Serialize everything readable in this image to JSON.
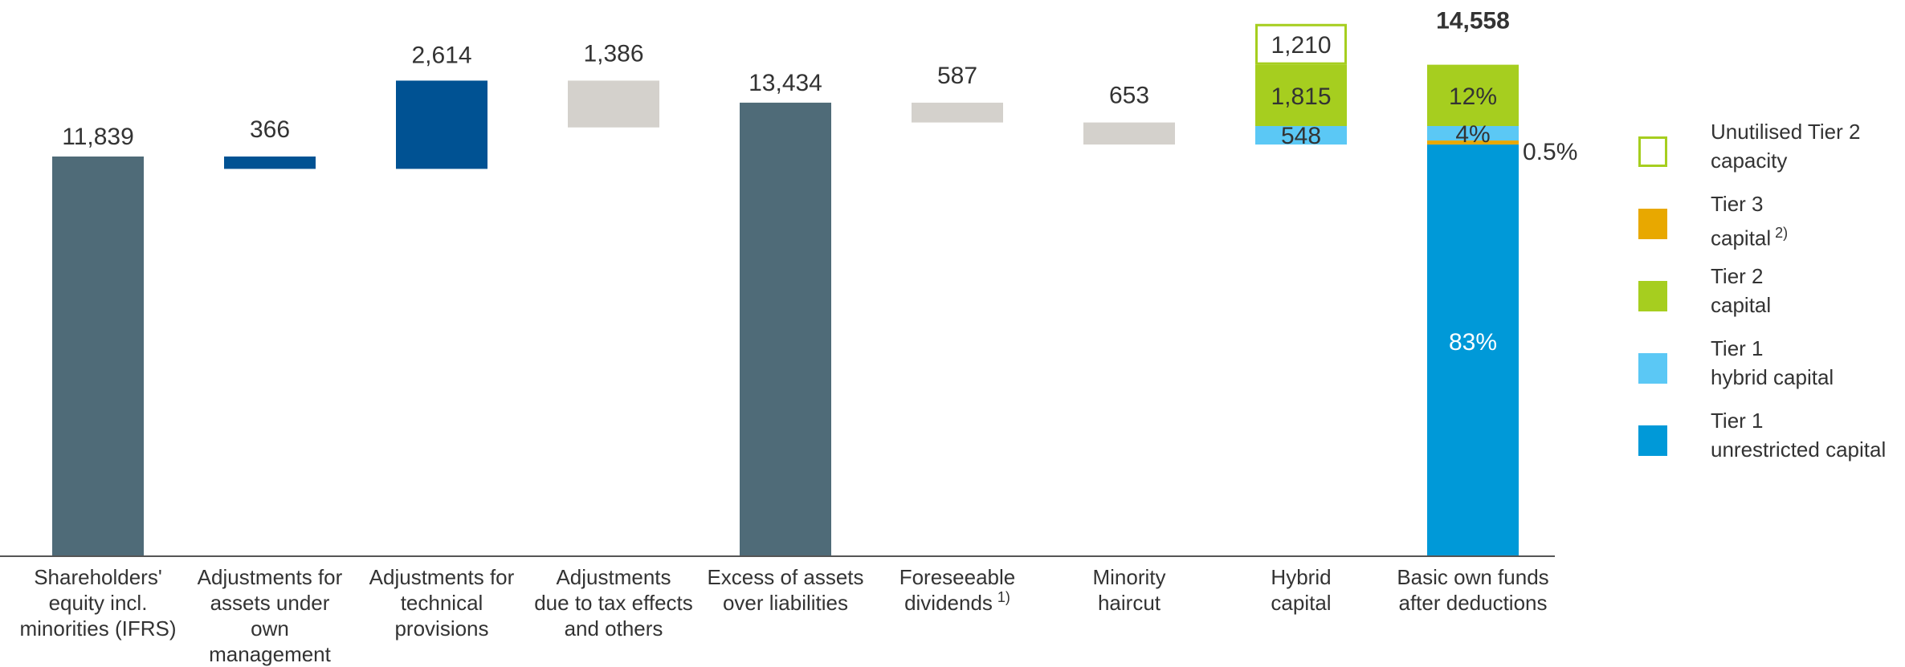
{
  "chart_data": {
    "type": "bar",
    "subtype": "waterfall",
    "ylim": [
      0,
      15500
    ],
    "categories": [
      {
        "label": [
          "Shareholders'",
          "equity incl.",
          "minorities (IFRS)"
        ],
        "footnote": "",
        "value": 11839,
        "label_text": "11,839",
        "kind": "total"
      },
      {
        "label": [
          "Adjustments for",
          "assets under",
          "own",
          "management"
        ],
        "footnote": "",
        "value": 366,
        "label_text": "366",
        "kind": "decrease"
      },
      {
        "label": [
          "Adjustments for",
          "technical",
          "provisions"
        ],
        "footnote": "",
        "value": 2614,
        "label_text": "2,614",
        "kind": "increase"
      },
      {
        "label": [
          "Adjustments",
          "due to tax effects",
          "and others"
        ],
        "footnote": "",
        "value": 1386,
        "label_text": "1,386",
        "kind": "decrease"
      },
      {
        "label": [
          "Excess of assets",
          "over liabilities"
        ],
        "footnote": "",
        "value": 13434,
        "label_text": "13,434",
        "kind": "total"
      },
      {
        "label": [
          "Foreseeable",
          "dividends"
        ],
        "footnote": "1)",
        "value": 587,
        "label_text": "587",
        "kind": "decrease"
      },
      {
        "label": [
          "Minority",
          "haircut"
        ],
        "footnote": "",
        "value": 653,
        "label_text": "653",
        "kind": "decrease"
      },
      {
        "label": [
          "Hybrid",
          "capital"
        ],
        "footnote": "",
        "kind": "hybrid",
        "segments": [
          {
            "name": "Tier 1 hybrid capital",
            "value": 548,
            "label_text": "548"
          },
          {
            "name": "Tier 2 capital",
            "value": 1815,
            "label_text": "1,815"
          },
          {
            "name": "Unutilised Tier 2 capacity",
            "value": 1210,
            "label_text": "1,210"
          }
        ]
      },
      {
        "label": [
          "Basic own funds",
          "after deductions"
        ],
        "footnote": "",
        "kind": "stacked_total",
        "total": 14558,
        "total_text": "14,558",
        "segments": [
          {
            "name": "Tier 1 unrestricted capital",
            "percent_text": "83%"
          },
          {
            "name": "Tier 3 capital",
            "percent_text": "0.5%"
          },
          {
            "name": "Tier 1 hybrid capital",
            "percent_text": "4%"
          },
          {
            "name": "Tier 2 capital",
            "percent_text": "12%"
          }
        ]
      }
    ],
    "legend": {
      "position": "right",
      "items": [
        {
          "label": [
            "Unutilised Tier 2",
            "capacity"
          ],
          "footnote": "",
          "color": "#ffffff",
          "border": "#a6ce1f"
        },
        {
          "label": [
            "Tier 3",
            "capital"
          ],
          "footnote": "2)",
          "color": "#e8a800",
          "border": ""
        },
        {
          "label": [
            "Tier 2",
            "capital"
          ],
          "footnote": "",
          "color": "#a6ce1f",
          "border": ""
        },
        {
          "label": [
            "Tier 1",
            "hybrid capital"
          ],
          "footnote": "",
          "color": "#5bc8f5",
          "border": ""
        },
        {
          "label": [
            "Tier 1",
            "unrestricted capital"
          ],
          "footnote": "",
          "color": "#0099d8",
          "border": ""
        }
      ]
    },
    "colors": {
      "total": "#4f6b78",
      "increase": "#005293",
      "decrease_first": "#005293",
      "decrease": "#d4d1cc",
      "tier1_unrestricted": "#0099d8",
      "tier1_hybrid": "#5bc8f5",
      "tier2": "#a6ce1f",
      "tier3": "#e8a800",
      "unutilised_border": "#a6ce1f",
      "axis": "#555555"
    }
  }
}
